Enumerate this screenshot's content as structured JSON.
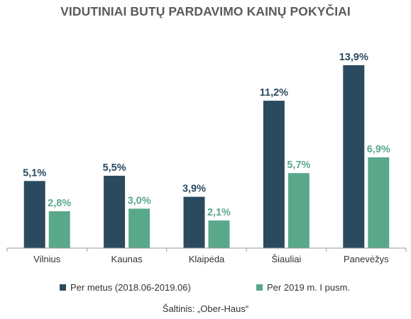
{
  "title": "VIDUTINIAI BUTŲ PARDAVIMO KAINŲ POKYČIAI",
  "source": "Šaltinis: „Ober-Haus“",
  "colors": {
    "series1": "#2b4a5f",
    "series2": "#5aa88a",
    "axis": "#999999",
    "text": "#333333"
  },
  "chart_data": {
    "type": "bar",
    "categories": [
      "Vilnius",
      "Kaunas",
      "Klaipėda",
      "Šiauliai",
      "Panevėžys"
    ],
    "series": [
      {
        "name": "Per metus (2018.06-2019.06)",
        "values": [
          5.1,
          5.5,
          3.9,
          11.2,
          13.9
        ],
        "labels": [
          "5,1%",
          "5,5%",
          "3,9%",
          "11,2%",
          "13,9%"
        ],
        "color": "#2b4a5f"
      },
      {
        "name": "Per 2019 m. I pusm.",
        "values": [
          2.8,
          3.0,
          2.1,
          5.7,
          6.9
        ],
        "labels": [
          "2,8%",
          "3,0%",
          "2,1%",
          "5,7%",
          "6,9%"
        ],
        "color": "#5aa88a"
      }
    ],
    "title": "VIDUTINIAI BUTŲ PARDAVIMO KAINŲ POKYČIAI",
    "ylim": [
      0,
      13.9
    ],
    "grid": false,
    "legend": "bottom"
  }
}
